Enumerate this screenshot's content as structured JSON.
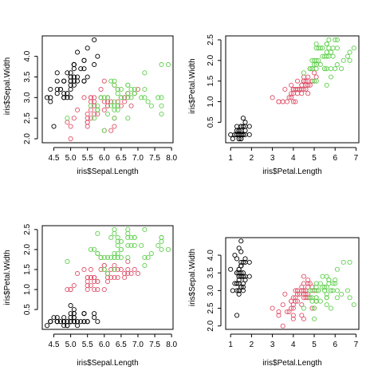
{
  "colors": {
    "setosa": "#000000",
    "versicolor": "#DF536B",
    "virginica": "#61D04F"
  },
  "iris": {
    "sepal_length": [
      5.1,
      4.9,
      4.7,
      4.6,
      5.0,
      5.4,
      4.6,
      5.0,
      4.4,
      4.9,
      5.4,
      4.8,
      4.8,
      4.3,
      5.8,
      5.7,
      5.4,
      5.1,
      5.7,
      5.1,
      5.4,
      5.1,
      4.6,
      5.1,
      4.8,
      5.0,
      5.0,
      5.2,
      5.2,
      4.7,
      4.8,
      5.4,
      5.2,
      5.5,
      4.9,
      5.0,
      5.5,
      4.9,
      4.4,
      5.1,
      5.0,
      4.5,
      4.4,
      5.0,
      5.1,
      4.8,
      5.1,
      4.6,
      5.3,
      5.0,
      7.0,
      6.4,
      6.9,
      5.5,
      6.5,
      5.7,
      6.3,
      4.9,
      6.6,
      5.2,
      5.0,
      5.9,
      6.0,
      6.1,
      5.6,
      6.7,
      5.6,
      5.8,
      6.2,
      5.6,
      5.9,
      6.1,
      6.3,
      6.1,
      6.4,
      6.6,
      6.8,
      6.7,
      6.0,
      5.7,
      5.5,
      5.5,
      5.8,
      6.0,
      5.4,
      6.0,
      6.7,
      6.3,
      5.6,
      5.5,
      5.5,
      6.1,
      5.8,
      5.0,
      5.6,
      5.7,
      5.7,
      6.2,
      5.1,
      5.7,
      6.3,
      5.8,
      7.1,
      6.3,
      6.5,
      7.6,
      4.9,
      7.3,
      6.7,
      7.2,
      6.5,
      6.4,
      6.8,
      5.7,
      5.8,
      6.4,
      6.5,
      7.7,
      7.7,
      6.0,
      6.9,
      5.6,
      7.7,
      6.3,
      6.7,
      7.2,
      6.2,
      6.1,
      6.4,
      7.2,
      7.4,
      7.9,
      6.4,
      6.3,
      6.1,
      7.7,
      6.3,
      6.4,
      6.0,
      6.9,
      6.7,
      6.9,
      5.8,
      6.8,
      6.7,
      6.7,
      6.3,
      6.5,
      6.2,
      5.9
    ],
    "sepal_width": [
      3.5,
      3.0,
      3.2,
      3.1,
      3.6,
      3.9,
      3.4,
      3.4,
      2.9,
      3.1,
      3.7,
      3.4,
      3.0,
      3.0,
      4.0,
      4.4,
      3.9,
      3.5,
      3.8,
      3.8,
      3.4,
      3.7,
      3.6,
      3.3,
      3.4,
      3.0,
      3.4,
      3.5,
      3.4,
      3.2,
      3.1,
      3.4,
      4.1,
      4.2,
      3.1,
      3.2,
      3.5,
      3.6,
      3.0,
      3.4,
      3.5,
      2.3,
      3.2,
      3.5,
      3.8,
      3.0,
      3.8,
      3.2,
      3.7,
      3.3,
      3.2,
      3.2,
      3.1,
      2.3,
      2.8,
      2.8,
      3.3,
      2.4,
      2.9,
      2.7,
      2.0,
      3.0,
      2.2,
      2.9,
      2.9,
      3.1,
      3.0,
      2.7,
      2.2,
      2.5,
      3.2,
      2.8,
      2.5,
      2.8,
      2.9,
      3.0,
      2.8,
      3.0,
      2.9,
      2.6,
      2.4,
      2.4,
      2.7,
      2.7,
      3.0,
      3.4,
      3.1,
      2.3,
      3.0,
      2.5,
      2.6,
      3.0,
      2.6,
      2.3,
      2.7,
      3.0,
      2.9,
      2.9,
      2.5,
      2.8,
      3.3,
      2.7,
      3.0,
      2.9,
      3.0,
      3.0,
      2.5,
      2.9,
      2.5,
      3.6,
      3.2,
      2.7,
      3.0,
      2.5,
      2.8,
      3.2,
      3.0,
      3.8,
      2.6,
      2.2,
      3.2,
      2.8,
      2.8,
      2.7,
      3.3,
      3.2,
      2.8,
      3.0,
      2.8,
      3.0,
      2.8,
      3.8,
      2.8,
      2.8,
      2.6,
      3.0,
      3.4,
      3.1,
      3.0,
      3.1,
      3.1,
      3.1,
      2.7,
      3.2,
      3.3,
      3.0,
      2.5,
      3.0,
      3.4,
      3.0
    ],
    "petal_length": [
      1.4,
      1.4,
      1.3,
      1.5,
      1.4,
      1.7,
      1.4,
      1.5,
      1.4,
      1.5,
      1.5,
      1.6,
      1.4,
      1.1,
      1.2,
      1.5,
      1.3,
      1.4,
      1.7,
      1.5,
      1.7,
      1.5,
      1.0,
      1.7,
      1.9,
      1.6,
      1.6,
      1.5,
      1.4,
      1.6,
      1.6,
      1.5,
      1.5,
      1.4,
      1.5,
      1.2,
      1.3,
      1.4,
      1.3,
      1.5,
      1.3,
      1.3,
      1.3,
      1.6,
      1.9,
      1.4,
      1.6,
      1.4,
      1.5,
      1.4,
      4.7,
      4.5,
      4.9,
      4.0,
      4.6,
      4.5,
      4.7,
      3.3,
      4.6,
      3.9,
      3.5,
      4.2,
      4.0,
      4.7,
      3.6,
      4.4,
      4.5,
      4.1,
      4.5,
      3.9,
      4.8,
      4.0,
      4.9,
      4.7,
      4.3,
      4.4,
      4.8,
      5.0,
      4.5,
      3.5,
      3.8,
      3.7,
      3.9,
      5.1,
      4.5,
      4.5,
      4.7,
      4.4,
      4.1,
      4.0,
      4.4,
      4.6,
      4.0,
      3.3,
      4.2,
      4.2,
      4.2,
      4.3,
      3.0,
      4.1,
      6.0,
      5.1,
      5.9,
      5.6,
      5.8,
      6.6,
      4.5,
      6.3,
      5.8,
      6.1,
      5.1,
      5.3,
      5.5,
      5.0,
      5.1,
      5.3,
      5.5,
      6.7,
      6.9,
      5.0,
      5.7,
      4.9,
      6.7,
      4.9,
      5.7,
      6.0,
      4.8,
      4.9,
      5.6,
      5.8,
      6.1,
      6.4,
      5.6,
      5.1,
      5.6,
      6.1,
      5.6,
      5.5,
      4.8,
      5.4,
      5.6,
      5.1,
      5.1,
      5.9,
      5.7,
      5.2,
      5.0,
      5.2,
      5.4,
      5.1
    ],
    "petal_width": [
      0.2,
      0.2,
      0.2,
      0.2,
      0.2,
      0.4,
      0.3,
      0.2,
      0.2,
      0.1,
      0.2,
      0.2,
      0.1,
      0.1,
      0.2,
      0.4,
      0.4,
      0.3,
      0.3,
      0.3,
      0.2,
      0.4,
      0.2,
      0.5,
      0.2,
      0.2,
      0.4,
      0.2,
      0.2,
      0.2,
      0.2,
      0.4,
      0.1,
      0.2,
      0.2,
      0.2,
      0.2,
      0.1,
      0.2,
      0.2,
      0.3,
      0.3,
      0.2,
      0.6,
      0.4,
      0.3,
      0.2,
      0.2,
      0.2,
      0.2,
      1.4,
      1.5,
      1.5,
      1.3,
      1.5,
      1.3,
      1.6,
      1.0,
      1.3,
      1.4,
      1.0,
      1.5,
      1.0,
      1.4,
      1.3,
      1.4,
      1.5,
      1.0,
      1.5,
      1.1,
      1.8,
      1.3,
      1.5,
      1.2,
      1.3,
      1.4,
      1.4,
      1.7,
      1.5,
      1.0,
      1.1,
      1.0,
      1.2,
      1.6,
      1.5,
      1.6,
      1.5,
      1.3,
      1.3,
      1.3,
      1.2,
      1.4,
      1.2,
      1.0,
      1.3,
      1.2,
      1.3,
      1.3,
      1.1,
      1.3,
      2.5,
      1.9,
      2.1,
      1.8,
      2.2,
      2.1,
      1.7,
      1.8,
      1.8,
      2.5,
      2.0,
      1.9,
      2.1,
      2.0,
      2.4,
      2.3,
      1.8,
      2.2,
      2.3,
      1.5,
      2.3,
      2.0,
      2.0,
      1.8,
      2.1,
      1.8,
      1.8,
      1.8,
      2.1,
      1.6,
      1.9,
      2.0,
      2.2,
      1.5,
      1.4,
      2.3,
      2.4,
      1.8,
      1.8,
      2.1,
      2.4,
      2.3,
      1.9,
      2.3,
      2.5,
      2.3,
      1.9,
      2.0,
      2.3,
      1.8
    ]
  },
  "chart_data": [
    {
      "type": "scatter",
      "x_field": "sepal_length",
      "y_field": "sepal_width",
      "xlabel": "iris$Sepal.Length",
      "ylabel": "iris$Sepal.Width",
      "xlim": [
        4.3,
        7.9
      ],
      "ylim": [
        2.0,
        4.4
      ],
      "xticks": [
        4.5,
        5.0,
        5.5,
        6.0,
        6.5,
        7.0,
        7.5,
        8.0
      ],
      "yticks": [
        2.0,
        2.5,
        3.0,
        3.5,
        4.0
      ],
      "xtick_labels": [
        "4.5",
        "5.0",
        "5.5",
        "6.0",
        "6.5",
        "7.0",
        "7.5",
        "8.0"
      ],
      "ytick_labels": [
        "2.0",
        "2.5",
        "3.0",
        "3.5",
        "4.0"
      ],
      "grid": false
    },
    {
      "type": "scatter",
      "x_field": "petal_length",
      "y_field": "petal_width",
      "xlabel": "iris$Petal.Length",
      "ylabel": "iris$Petal.Width",
      "xlim": [
        1.0,
        6.9
      ],
      "ylim": [
        0.1,
        2.5
      ],
      "xticks": [
        1,
        2,
        3,
        4,
        5,
        6,
        7
      ],
      "yticks": [
        0.5,
        1.0,
        1.5,
        2.0,
        2.5
      ],
      "xtick_labels": [
        "1",
        "2",
        "3",
        "4",
        "5",
        "6",
        "7"
      ],
      "ytick_labels": [
        "0.5",
        "1.0",
        "1.5",
        "2.0",
        "2.5"
      ],
      "grid": false
    },
    {
      "type": "scatter",
      "x_field": "sepal_length",
      "y_field": "petal_width",
      "xlabel": "iris$Sepal.Length",
      "ylabel": "iris$Petal.Width",
      "xlim": [
        4.3,
        7.9
      ],
      "ylim": [
        0.1,
        2.5
      ],
      "xticks": [
        4.5,
        5.0,
        5.5,
        6.0,
        6.5,
        7.0,
        7.5,
        8.0
      ],
      "yticks": [
        0.5,
        1.0,
        1.5,
        2.0,
        2.5
      ],
      "xtick_labels": [
        "4.5",
        "5.0",
        "5.5",
        "6.0",
        "6.5",
        "7.0",
        "7.5",
        "8.0"
      ],
      "ytick_labels": [
        "0.5",
        "1.0",
        "1.5",
        "2.0",
        "2.5"
      ],
      "grid": false
    },
    {
      "type": "scatter",
      "x_field": "petal_length",
      "y_field": "sepal_width",
      "xlabel": "iris$Petal.Length",
      "ylabel": "iris$Sepal.Width",
      "xlim": [
        1.0,
        6.9
      ],
      "ylim": [
        2.0,
        4.4
      ],
      "xticks": [
        1,
        2,
        3,
        4,
        5,
        6,
        7
      ],
      "yticks": [
        2.0,
        2.5,
        3.0,
        3.5,
        4.0
      ],
      "xtick_labels": [
        "1",
        "2",
        "3",
        "4",
        "5",
        "6",
        "7"
      ],
      "ytick_labels": [
        "2.0",
        "2.5",
        "3.0",
        "3.5",
        "4.0"
      ],
      "grid": false
    }
  ]
}
